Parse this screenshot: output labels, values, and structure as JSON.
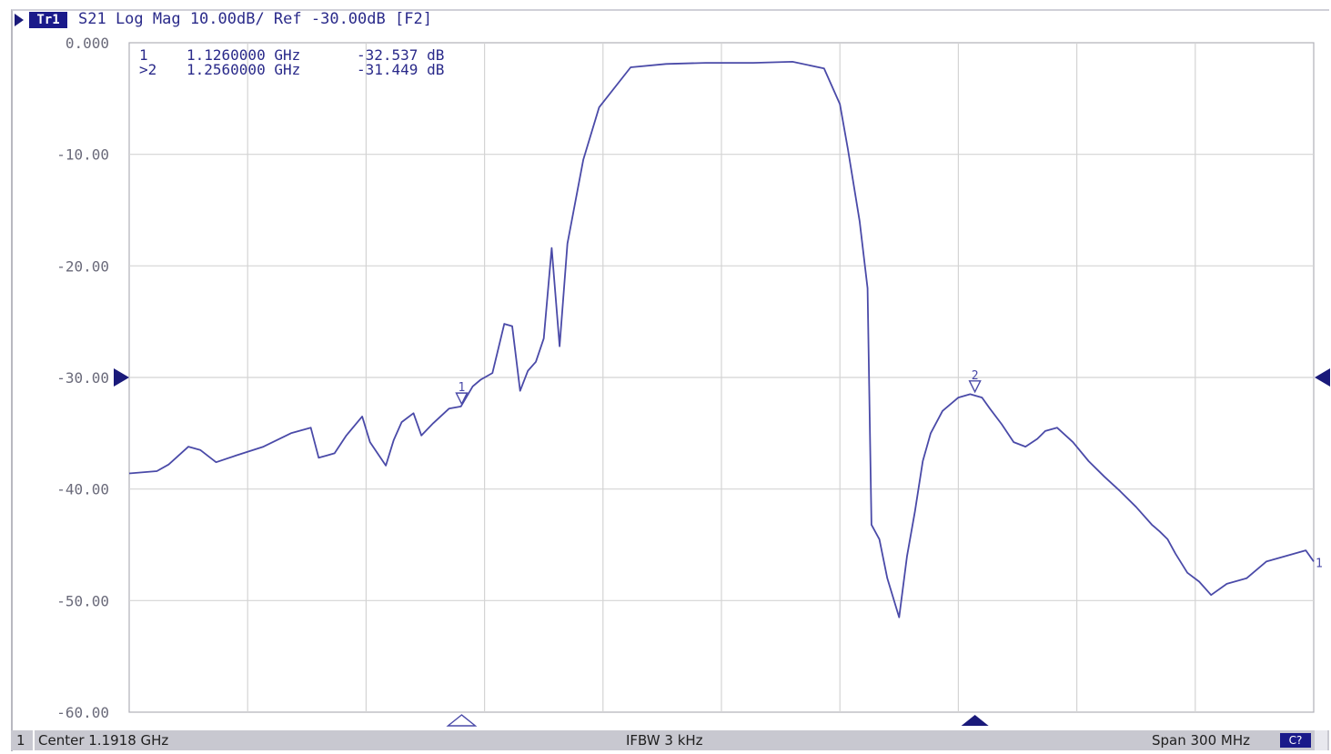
{
  "header": {
    "trace_badge": "Tr1",
    "trace_info": "S21 Log Mag 10.00dB/ Ref -30.00dB [F2]"
  },
  "markers_table": [
    {
      "label": " 1",
      "freq": "1.1260000 GHz",
      "value": "-32.537 dB"
    },
    {
      "label": ">2",
      "freq": "1.2560000 GHz",
      "value": "-31.449 dB"
    }
  ],
  "status_bar": {
    "channel": "1",
    "center": "Center 1.1918 GHz",
    "ifbw": "IFBW 3 kHz",
    "span": "Span 300 MHz",
    "badge": "C?"
  },
  "colors": {
    "trace": "#4a4aa8",
    "grid": "#d4d4d4",
    "text": "#2a2a8a",
    "marker_fill": "#1a1a7a"
  },
  "chart_data": {
    "type": "line",
    "title": "S21 Log Mag 10.00dB/ Ref -30.00dB [F2]",
    "xlabel": "",
    "ylabel": "",
    "xlim": [
      1.0418,
      1.3418
    ],
    "ylim": [
      -60,
      0
    ],
    "yticks": [
      "0.000",
      "-10.00",
      "-20.00",
      "-30.00",
      "-40.00",
      "-50.00",
      "-60.00"
    ],
    "ytick_values": [
      0,
      -10,
      -20,
      -30,
      -40,
      -50,
      -60
    ],
    "x_divisions": 10,
    "grid": true,
    "reference_level": -30,
    "series": [
      {
        "name": "S21",
        "x": [
          1.0418,
          1.0488,
          1.0518,
          1.0568,
          1.0598,
          1.0638,
          1.0688,
          1.0758,
          1.0828,
          1.0878,
          1.0898,
          1.0918,
          1.0938,
          1.0968,
          1.1008,
          1.1028,
          1.1068,
          1.1088,
          1.1108,
          1.1138,
          1.1158,
          1.1188,
          1.1228,
          1.1258,
          1.1288,
          1.1308,
          1.1338,
          1.1368,
          1.1388,
          1.1408,
          1.1428,
          1.1448,
          1.1468,
          1.1488,
          1.1508,
          1.1528,
          1.1568,
          1.1608,
          1.1688,
          1.1778,
          1.1878,
          1.1998,
          1.2098,
          1.2178,
          1.2218,
          1.2238,
          1.2268,
          1.2288,
          1.2298,
          1.2318,
          1.2338,
          1.2368,
          1.2388,
          1.2408,
          1.2428,
          1.2448,
          1.2478,
          1.2518,
          1.2548,
          1.2578,
          1.2598,
          1.2628,
          1.2658,
          1.2688,
          1.2718,
          1.2738,
          1.2768,
          1.2808,
          1.2848,
          1.2888,
          1.2928,
          1.2968,
          1.3008,
          1.3028,
          1.3048,
          1.3068,
          1.3098,
          1.3128,
          1.3158,
          1.3198,
          1.3248,
          1.3298,
          1.3348,
          1.3398,
          1.3418
        ],
        "values": [
          -38.6,
          -38.4,
          -37.8,
          -36.2,
          -36.5,
          -37.6,
          -37.0,
          -36.2,
          -35.0,
          -34.5,
          -37.2,
          -37.0,
          -36.8,
          -35.2,
          -33.5,
          -35.8,
          -37.9,
          -35.6,
          -34.0,
          -33.2,
          -35.2,
          -34.1,
          -32.8,
          -32.6,
          -30.8,
          -30.2,
          -29.6,
          -25.2,
          -25.4,
          -31.2,
          -29.4,
          -28.6,
          -26.5,
          -18.4,
          -27.2,
          -18.0,
          -10.5,
          -5.8,
          -2.2,
          -1.9,
          -1.8,
          -1.8,
          -1.7,
          -2.3,
          -5.5,
          -9.5,
          -16.0,
          -22.0,
          -43.2,
          -44.5,
          -48.0,
          -51.5,
          -46.0,
          -42.0,
          -37.5,
          -35.0,
          -33.0,
          -31.8,
          -31.5,
          -31.8,
          -32.8,
          -34.2,
          -35.8,
          -36.2,
          -35.5,
          -34.8,
          -34.5,
          -35.8,
          -37.5,
          -38.9,
          -40.2,
          -41.6,
          -43.2,
          -43.8,
          -44.5,
          -45.8,
          -47.5,
          -48.3,
          -49.5,
          -48.5,
          -48.0,
          -46.5,
          -46.0,
          -45.5,
          -46.5
        ]
      }
    ],
    "markers": [
      {
        "id": "1",
        "x": 1.126,
        "y": -32.537,
        "active": false
      },
      {
        "id": "2",
        "x": 1.256,
        "y": -31.449,
        "active": true
      }
    ]
  }
}
